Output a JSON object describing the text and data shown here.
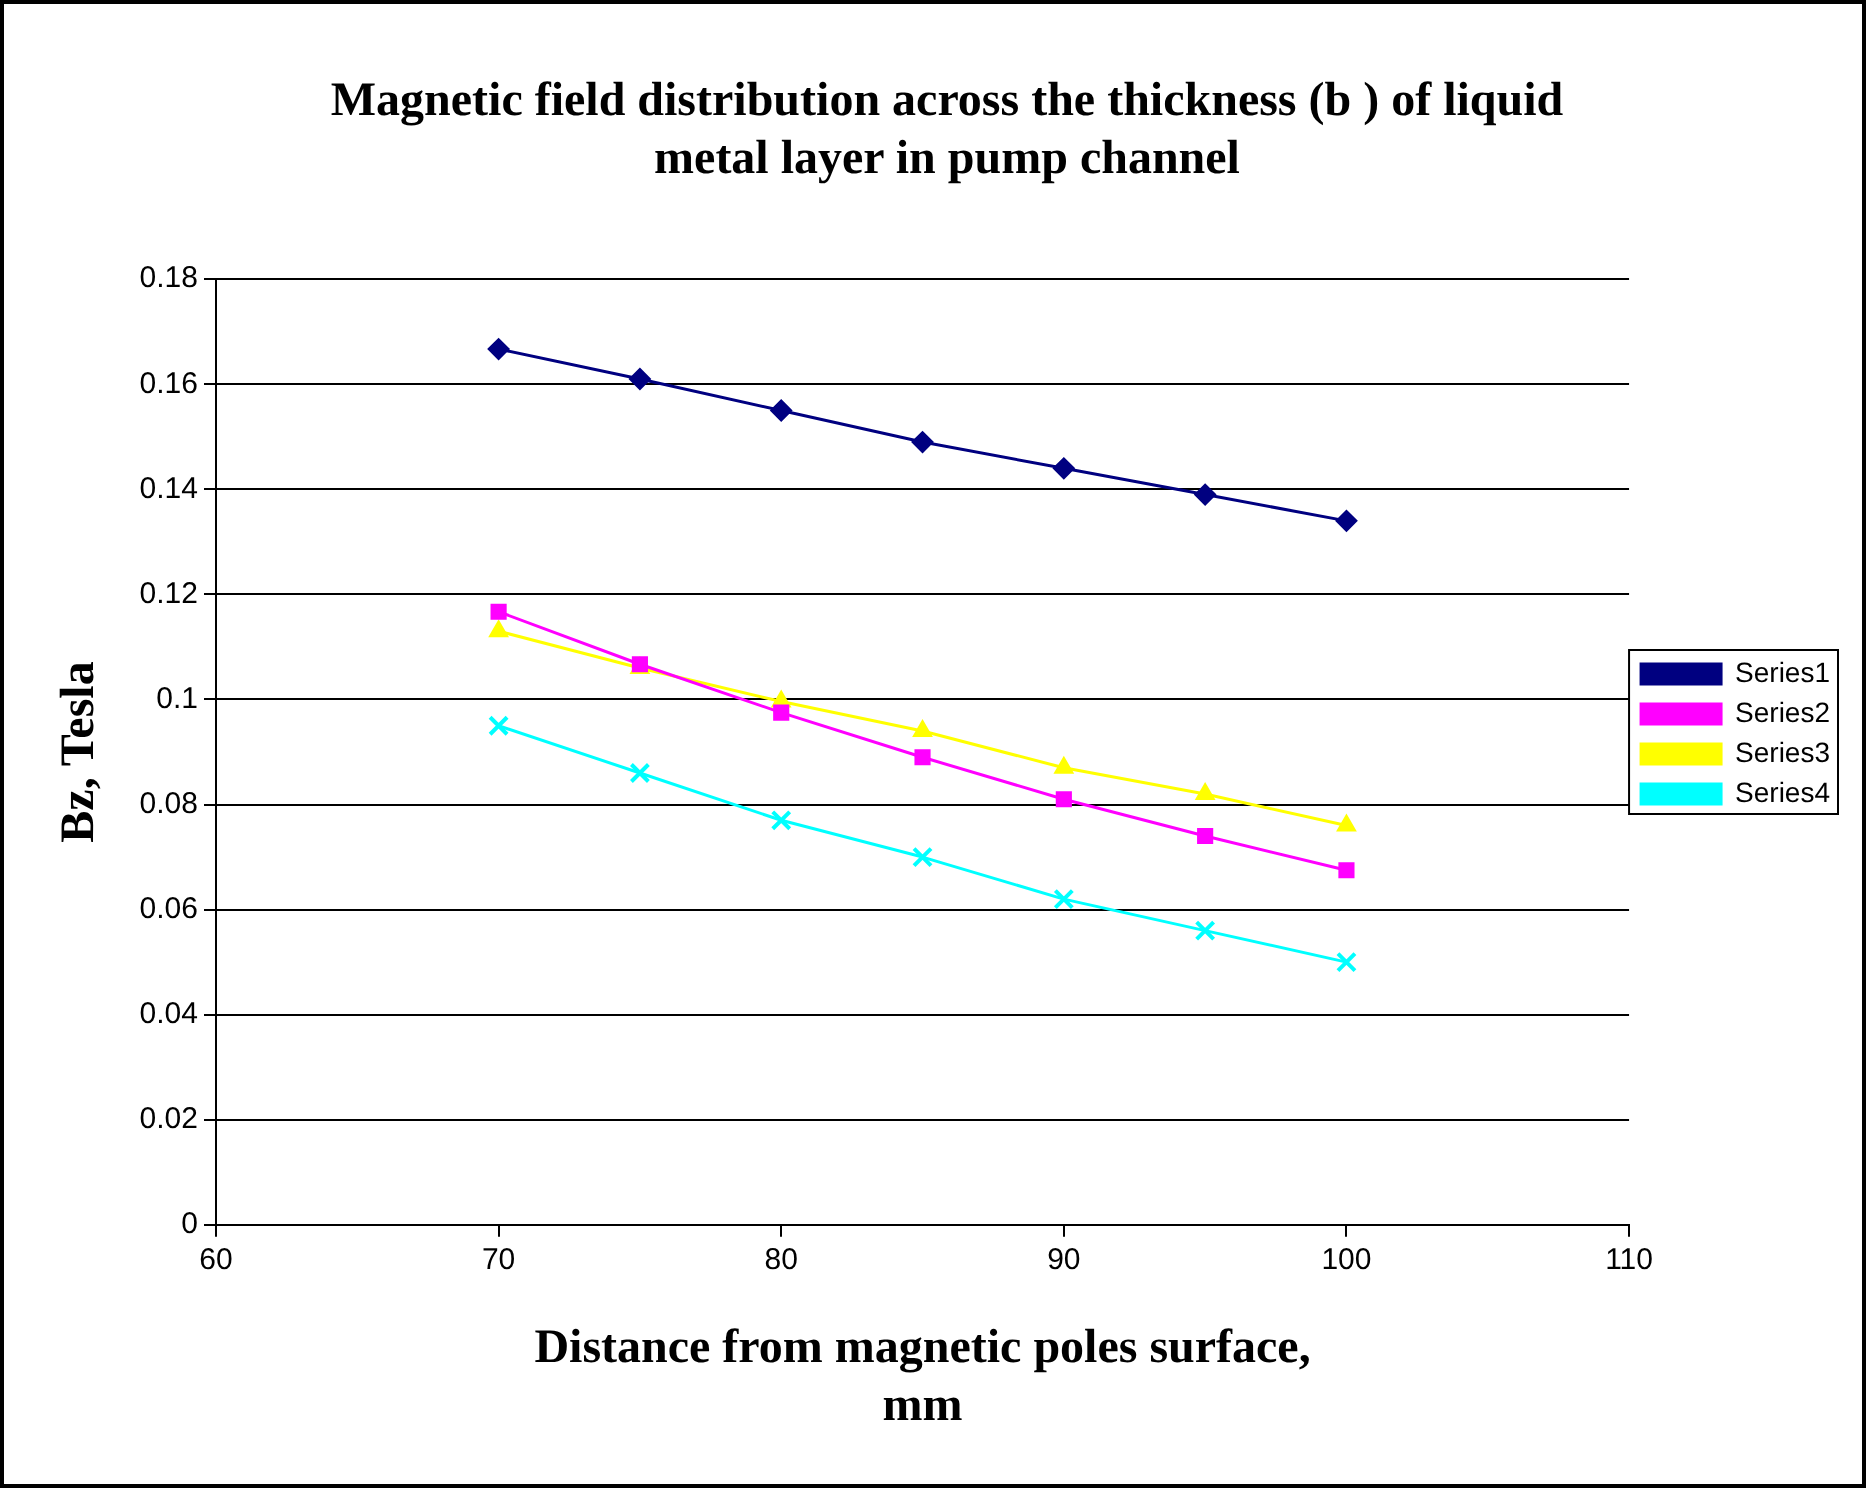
{
  "chart_data": {
    "type": "line",
    "title": "Magnetic field distribution across the thickness (b ) of liquid metal layer in pump channel",
    "xlabel": "Distance from magnetic poles surface, mm",
    "ylabel": "Bz, Tesla",
    "x": [
      70,
      75,
      80,
      85,
      90,
      95,
      100
    ],
    "series": [
      {
        "name": "Series1",
        "color": "#000080",
        "marker": "diamond",
        "values": [
          0.1667,
          0.161,
          0.155,
          0.149,
          0.144,
          0.139,
          0.134
        ]
      },
      {
        "name": "Series2",
        "color": "#ff00ff",
        "marker": "square",
        "values": [
          0.1167,
          0.1067,
          0.0975,
          0.089,
          0.081,
          0.074,
          0.0675
        ]
      },
      {
        "name": "Series3",
        "color": "#ffff00",
        "marker": "triangle",
        "values": [
          0.113,
          0.106,
          0.0996,
          0.094,
          0.087,
          0.082,
          0.076
        ]
      },
      {
        "name": "Series4",
        "color": "#00ffff",
        "marker": "cross",
        "values": [
          0.095,
          0.086,
          0.077,
          0.07,
          0.062,
          0.056,
          0.05
        ]
      }
    ],
    "xlim": [
      60,
      110
    ],
    "xticks": [
      60,
      70,
      80,
      90,
      100,
      110
    ],
    "ylim": [
      0,
      0.18
    ],
    "yticks": [
      0,
      0.02,
      0.04,
      0.06,
      0.08,
      0.1,
      0.12,
      0.14,
      0.16,
      0.18
    ],
    "grid": "y",
    "legend": "right",
    "line_style": "solid"
  }
}
